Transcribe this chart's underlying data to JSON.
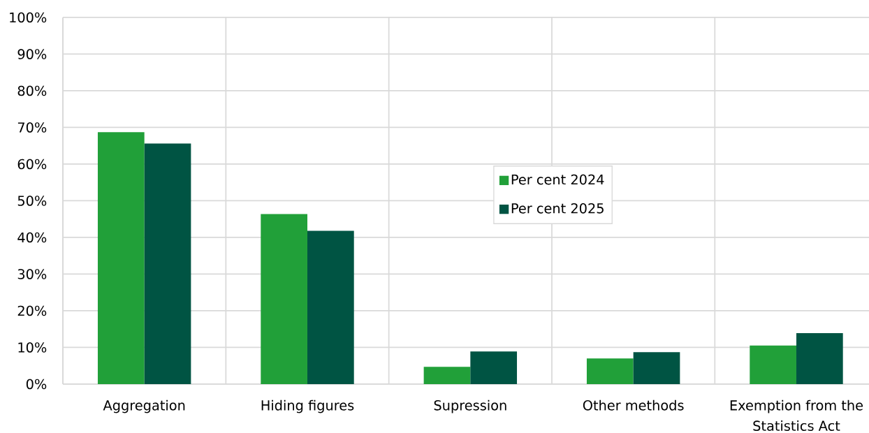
{
  "chart_data": {
    "type": "bar",
    "categories": [
      "Aggregation",
      "Hiding figures",
      "Supression",
      "Other methods",
      "Exemption from the Statistics Act"
    ],
    "series": [
      {
        "name": "Per cent 2024",
        "color": "#21a039",
        "values": [
          68.7,
          46.4,
          4.7,
          7.0,
          10.5
        ]
      },
      {
        "name": "Per cent 2025",
        "color": "#005443",
        "values": [
          65.6,
          41.8,
          8.9,
          8.7,
          13.9
        ]
      }
    ],
    "ylim": [
      0,
      100
    ],
    "yticks": [
      {
        "value": 0,
        "label": "0%"
      },
      {
        "value": 10,
        "label": "10%"
      },
      {
        "value": 20,
        "label": "20%"
      },
      {
        "value": 30,
        "label": "30%"
      },
      {
        "value": 40,
        "label": "40%"
      },
      {
        "value": 50,
        "label": "50%"
      },
      {
        "value": 60,
        "label": "60%"
      },
      {
        "value": 70,
        "label": "70%"
      },
      {
        "value": 80,
        "label": "80%"
      },
      {
        "value": 90,
        "label": "90%"
      },
      {
        "value": 100,
        "label": "100%"
      }
    ],
    "grid": true,
    "legend": "center"
  }
}
